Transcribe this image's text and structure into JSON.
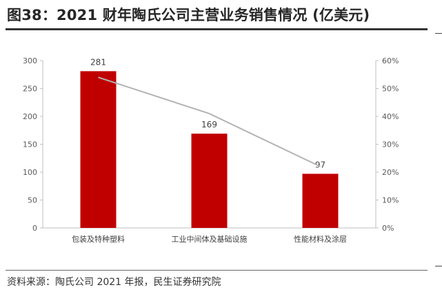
{
  "title": "图38：2021 财年陶氏公司主营业务销售情况 (亿美元)",
  "source": "资料来源：陶氏公司 2021 年报，民生证券研究院",
  "chart_data": {
    "type": "bar+line",
    "categories": [
      "包装及特种塑料",
      "工业中间体及基础设施",
      "性能材料及涂层"
    ],
    "series": [
      {
        "type": "bar",
        "axis": "left",
        "values": [
          281,
          169,
          97
        ],
        "color": "#c00000"
      },
      {
        "type": "line",
        "axis": "right",
        "values": [
          0.54,
          0.41,
          0.22
        ],
        "color": "#b3b3b3"
      }
    ],
    "left_axis": {
      "ylim": [
        0,
        300
      ],
      "ticks": [
        "0",
        "50",
        "100",
        "150",
        "200",
        "250",
        "300"
      ]
    },
    "right_axis": {
      "ylim": [
        0,
        0.6
      ],
      "ticks": [
        "0%",
        "10%",
        "20%",
        "30%",
        "40%",
        "50%",
        "60%"
      ]
    },
    "data_labels": [
      "281",
      "169",
      "97"
    ],
    "grid": false,
    "legend": "none"
  }
}
